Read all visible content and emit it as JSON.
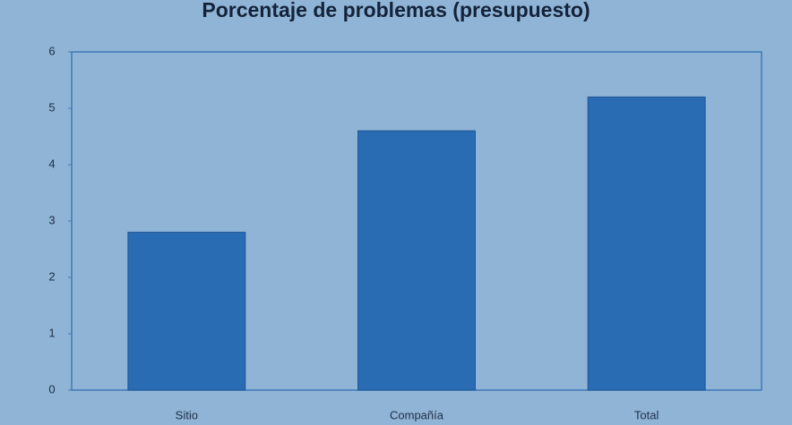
{
  "chart_data": {
    "type": "bar",
    "title": "Porcentaje de problemas (presupuesto)",
    "categories": [
      "Sitio",
      "Compañía",
      "Total"
    ],
    "values": [
      2.8,
      4.6,
      5.2
    ],
    "color": "#2a6cb3",
    "ylim": [
      0,
      6
    ],
    "yticks": [
      0,
      1,
      2,
      3,
      4,
      5,
      6
    ],
    "grid": false
  }
}
